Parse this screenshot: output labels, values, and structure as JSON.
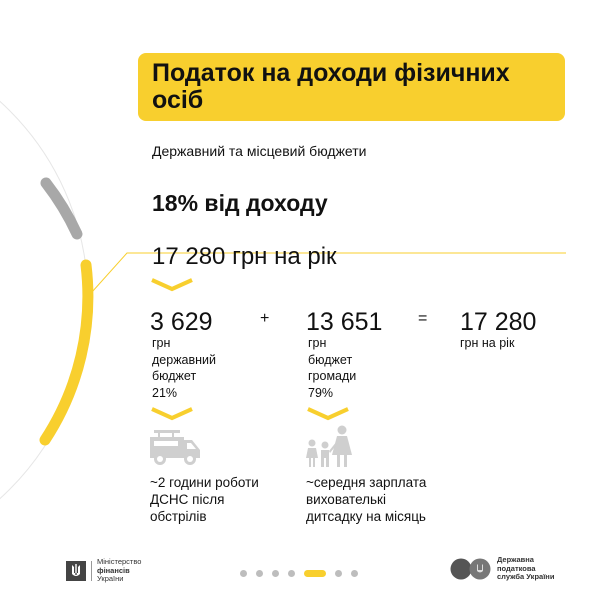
{
  "header": {
    "title": "Податок на доходи фізичних осіб",
    "subtitle": "Державний та місцевий бюджети"
  },
  "tax": {
    "rate_label": "18% від доходу",
    "annual_label": "17 280 грн на рік"
  },
  "breakdown": {
    "state": {
      "amount": "3 629",
      "lines": [
        "грн",
        "державний",
        "бюджет",
        "21%"
      ]
    },
    "plus": "+",
    "community": {
      "amount": "13 651",
      "lines": [
        "грн",
        "бюджет",
        "громади",
        "79%"
      ]
    },
    "equals": "=",
    "total": {
      "amount": "17 280",
      "lines": [
        "грн на рік"
      ]
    }
  },
  "equivalents": [
    {
      "icon": "fire-truck-icon",
      "lines": [
        "~2 години роботи",
        "ДСНС після",
        "обстрілів"
      ]
    },
    {
      "icon": "teacher-children-icon",
      "lines": [
        "~середня зарплата",
        "вихователькі",
        "дитсадку на місяць"
      ]
    }
  ],
  "footer": {
    "ministry": [
      "Міністерство",
      "фінансів",
      "України"
    ],
    "tax_service": [
      "Державна",
      "податкова",
      "служба України"
    ],
    "pagination": {
      "total": 7,
      "active": 5
    }
  },
  "colors": {
    "accent": "#F8CF2E",
    "gray": "#a8a8a8",
    "text": "#111111"
  }
}
